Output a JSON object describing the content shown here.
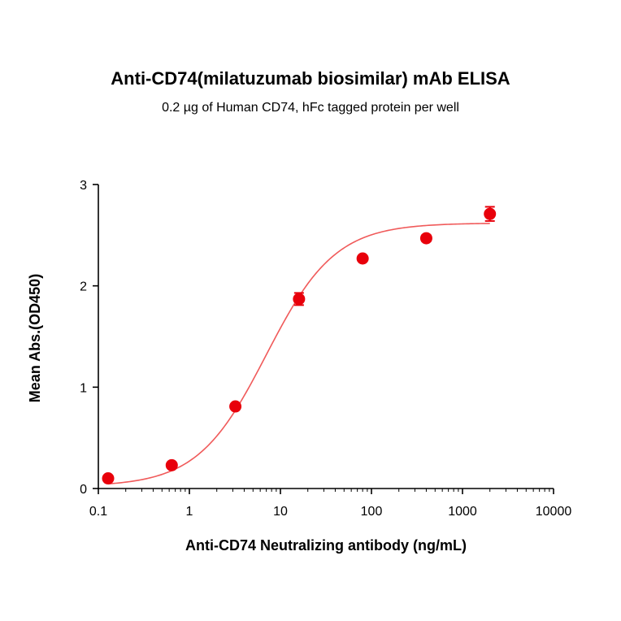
{
  "chart_data": {
    "type": "scatter",
    "title": "Anti-CD74(milatuzumab biosimilar) mAb ELISA",
    "subtitle": "0.2 µg of Human CD74, hFc tagged protein per well",
    "xlabel": "Anti-CD74 Neutralizing antibody (ng/mL)",
    "ylabel": "Mean Abs.(OD450)",
    "x_scale": "log",
    "xlim": [
      0.1,
      10000
    ],
    "ylim": [
      0,
      3
    ],
    "x_ticks": [
      "0.1",
      "1",
      "10",
      "100",
      "1000",
      "10000"
    ],
    "y_ticks": [
      "0",
      "1",
      "2",
      "3"
    ],
    "grid": false,
    "color": "#e8000b",
    "curve_color": "#f05a5a",
    "series": [
      {
        "x": [
          0.128,
          0.64,
          3.2,
          16,
          80,
          400,
          2000
        ],
        "y": [
          0.1,
          0.23,
          0.81,
          1.87,
          2.27,
          2.47,
          2.71
        ],
        "error": [
          0.01,
          0.01,
          0.02,
          0.06,
          0.02,
          0.03,
          0.07
        ]
      }
    ],
    "fit": {
      "model": "4PL",
      "bottom": 0.02,
      "top": 2.62,
      "ec50": 7.0,
      "hill": 1.15
    }
  }
}
